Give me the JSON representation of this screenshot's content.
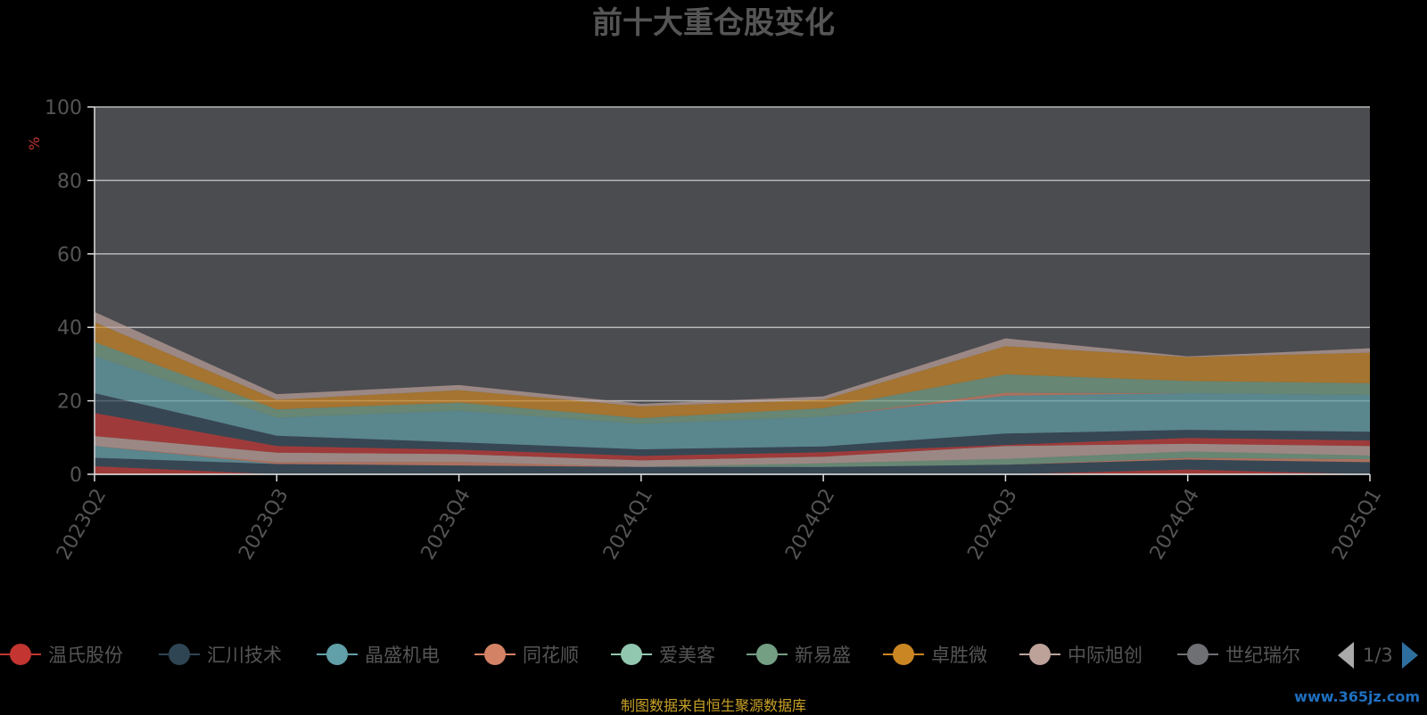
{
  "title": "前十大重仓股变化",
  "footer": "制图数据来自恒生聚源数据库",
  "watermark": "www.365jz.com",
  "pager": "1/3",
  "colors": {
    "background": "#000000",
    "plot_bg": "#4b4c50"
  },
  "legend_items": [
    {
      "name": "温氏股份",
      "color": "#c23531"
    },
    {
      "name": "汇川技术",
      "color": "#2f4554"
    },
    {
      "name": "晶盛机电",
      "color": "#61a0a8"
    },
    {
      "name": "同花顺",
      "color": "#d48265"
    },
    {
      "name": "爱美客",
      "color": "#91c7ae"
    },
    {
      "name": "新易盛",
      "color": "#749f83"
    },
    {
      "name": "卓胜微",
      "color": "#ca8622"
    },
    {
      "name": "中际旭创",
      "color": "#bda29a"
    },
    {
      "name": "世纪瑞尔",
      "color": "#6e7074"
    }
  ],
  "chart_data": {
    "type": "area",
    "stacked": true,
    "title": "前十大重仓股变化",
    "ylabel": "%",
    "xlabel": "",
    "ylim": [
      0,
      100
    ],
    "yticks": [
      0,
      20,
      40,
      60,
      80,
      100
    ],
    "grid": true,
    "legend_position": "bottom",
    "categories": [
      "2023Q2",
      "2023Q3",
      "2023Q4",
      "2024Q1",
      "2024Q2",
      "2024Q3",
      "2024Q4",
      "2025Q1"
    ],
    "layers": [
      {
        "color": "#c23531",
        "values": [
          2.2,
          0,
          0,
          0,
          0,
          0,
          1.3,
          0
        ]
      },
      {
        "color": "#2f4554",
        "values": [
          2.3,
          2.8,
          2.4,
          2.0,
          2.0,
          2.6,
          2.7,
          3.3
        ]
      },
      {
        "color": "#61a0a8",
        "values": [
          3.2,
          0,
          0,
          0,
          0,
          0,
          0,
          0
        ]
      },
      {
        "color": "#d48265",
        "values": [
          0,
          0.5,
          1.0,
          0,
          0,
          0,
          0.5,
          0.8
        ]
      },
      {
        "color": "#749f83",
        "values": [
          0,
          0,
          0,
          0,
          1.0,
          1.6,
          1.7,
          1.0
        ]
      },
      {
        "color": "#bda29a",
        "values": [
          2.7,
          2.6,
          2.1,
          1.8,
          1.8,
          3.5,
          2.1,
          2.6
        ]
      },
      {
        "color": "#c23531",
        "values": [
          6.3,
          1.8,
          1.2,
          1.2,
          1.2,
          0.3,
          1.6,
          1.5
        ]
      },
      {
        "color": "#2f4554",
        "values": [
          5.4,
          2.8,
          2.0,
          1.8,
          1.6,
          3.1,
          2.2,
          2.4
        ]
      },
      {
        "color": "#61a0a8",
        "values": [
          10.1,
          4.9,
          8.6,
          6.9,
          8.1,
          10.3,
          10.0,
          10.0
        ]
      },
      {
        "color": "#d48265",
        "values": [
          0,
          0,
          0,
          0,
          0,
          0.8,
          0,
          0
        ]
      },
      {
        "color": "#749f83",
        "values": [
          3.8,
          2.3,
          2.2,
          1.6,
          2.3,
          5.0,
          3.3,
          3.2
        ]
      },
      {
        "color": "#ca8622",
        "values": [
          5.4,
          2.6,
          3.4,
          3.2,
          2.3,
          7.7,
          6.5,
          8.3
        ]
      },
      {
        "color": "#bda29a",
        "values": [
          2.8,
          1.5,
          1.4,
          0.7,
          0.9,
          2.1,
          0.2,
          1.2
        ]
      }
    ]
  }
}
